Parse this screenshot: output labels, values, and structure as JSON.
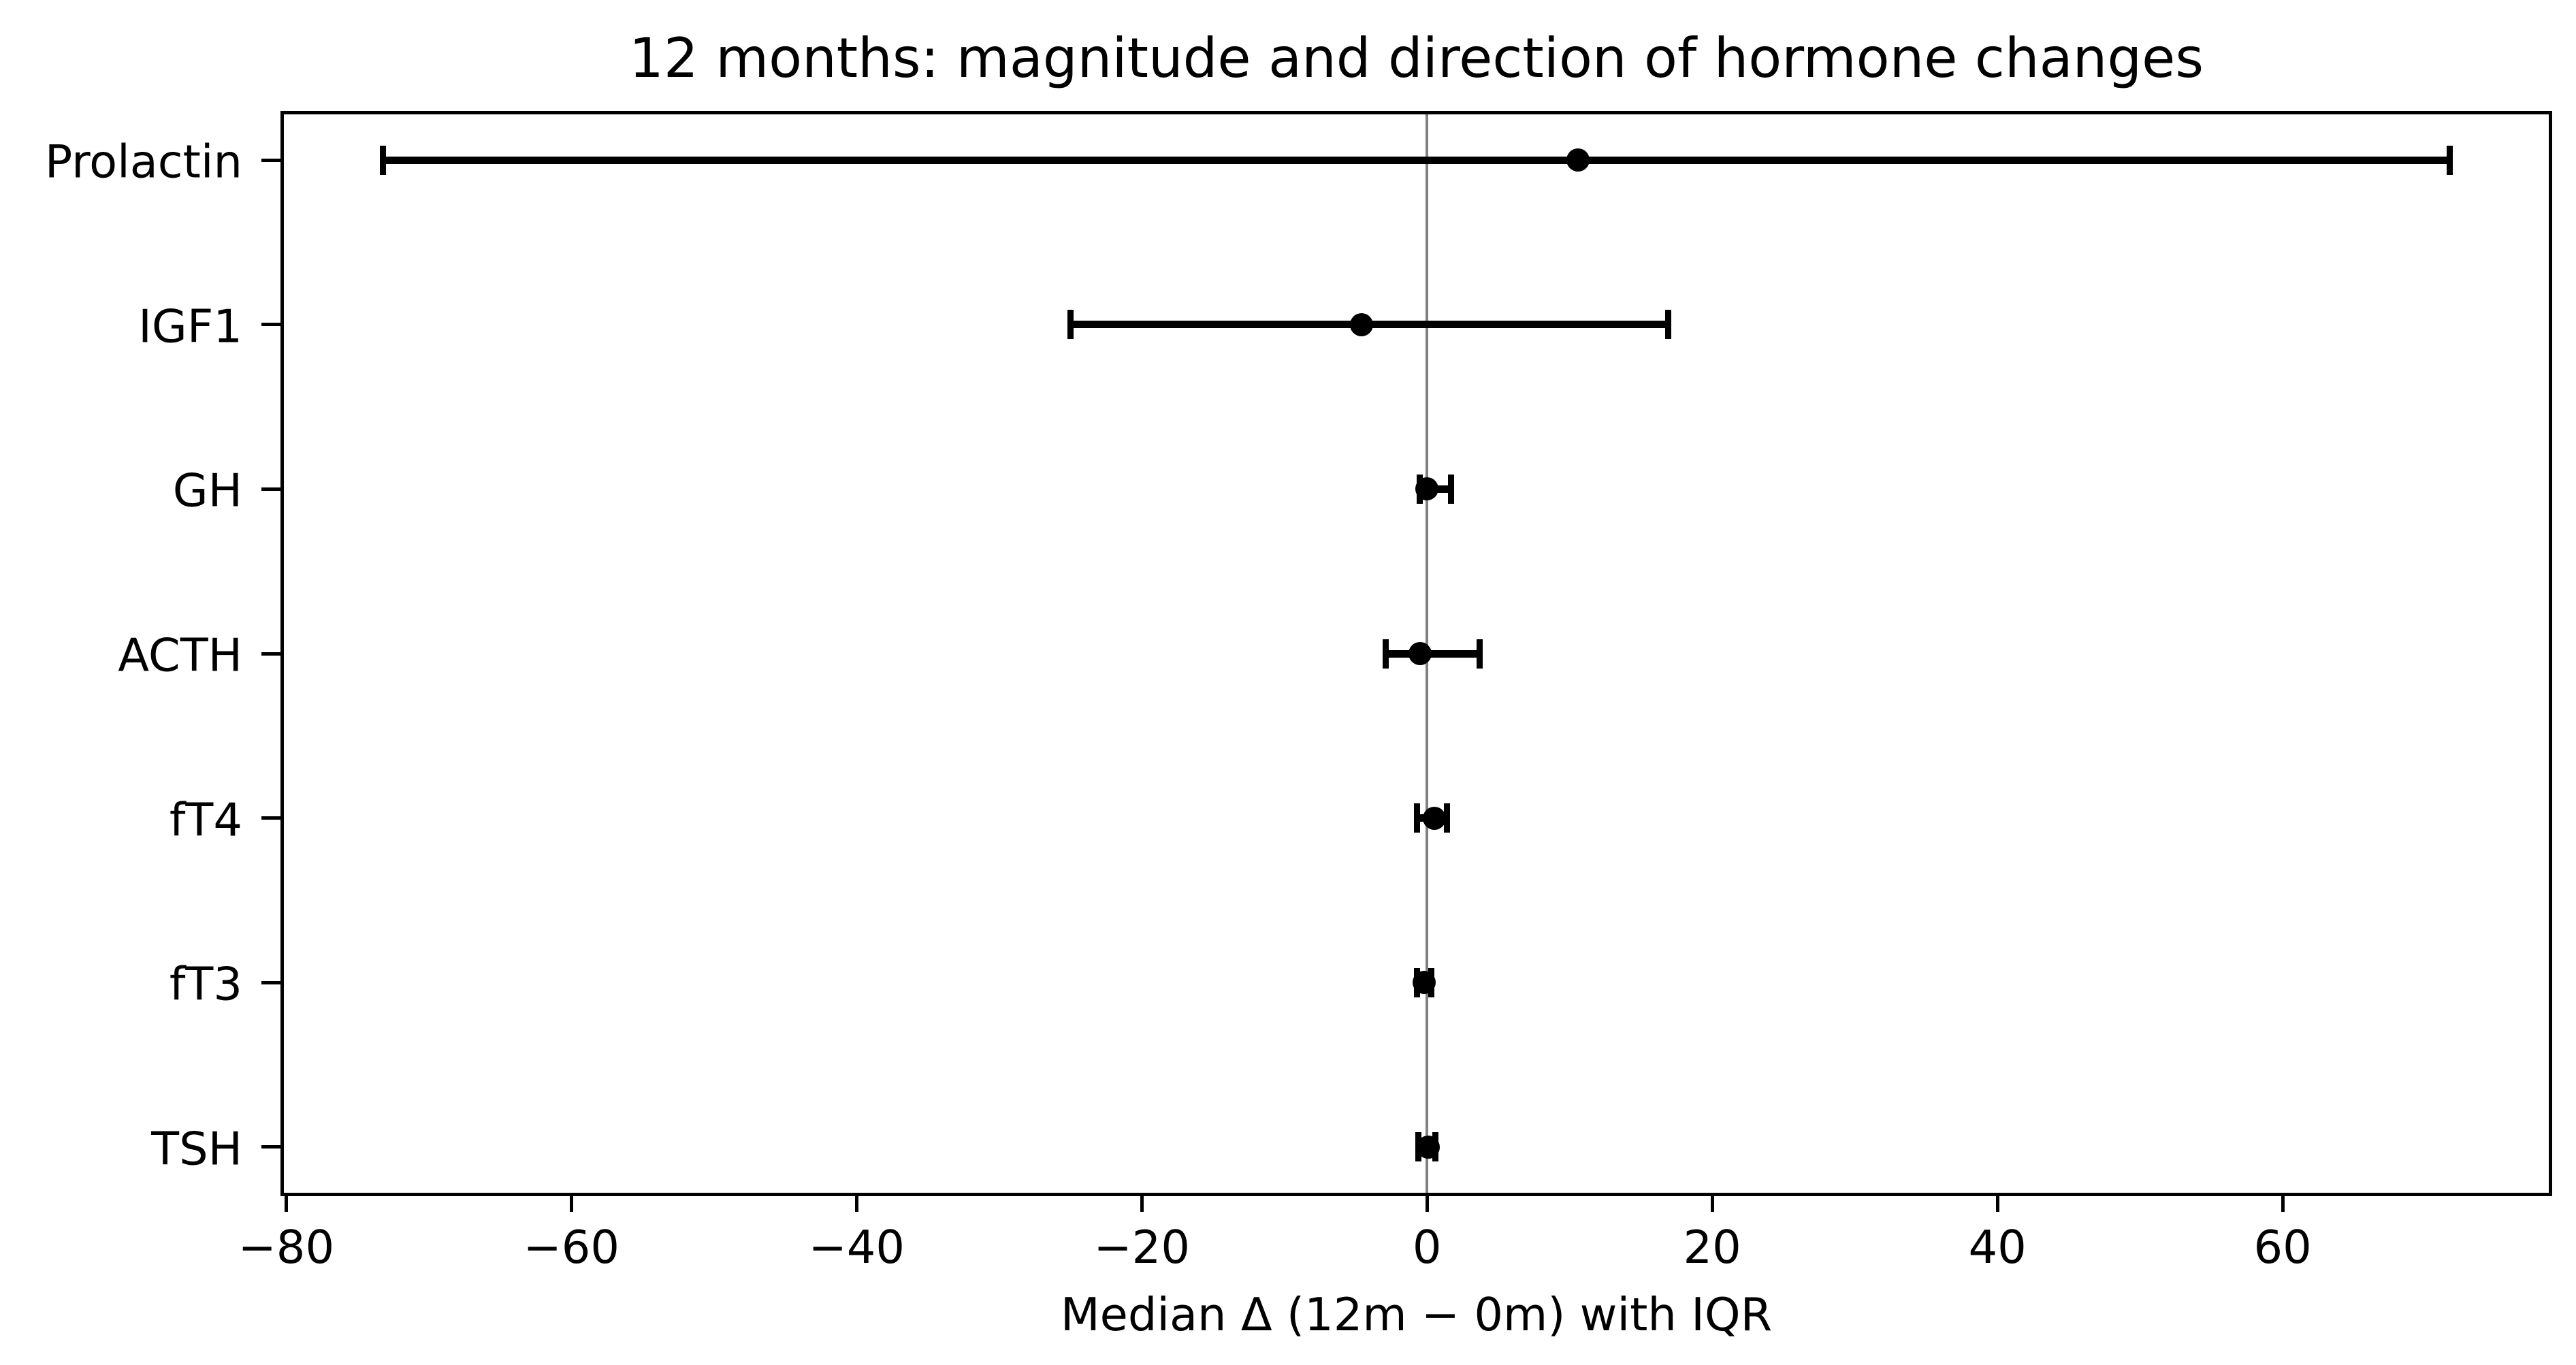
{
  "chart_data": {
    "type": "scatter",
    "subtype": "horizontal-error-bar-dot-plot",
    "title": "12 months: magnitude and direction of hormone changes",
    "xlabel": "Median Δ (12m − 0m) with IQR",
    "ylabel": "",
    "categories": [
      "Prolactin",
      "IGF1",
      "GH",
      "ACTH",
      "fT4",
      "fT3",
      "TSH"
    ],
    "series": [
      {
        "name": "Median Δ (12m − 0m)",
        "medians": [
          10.6,
          -4.6,
          0.0,
          -0.5,
          0.5,
          -0.2,
          0.1
        ],
        "iqr_low": [
          -73.2,
          -25.0,
          -0.5,
          -2.9,
          -0.7,
          -0.7,
          -0.6
        ],
        "iqr_high": [
          71.7,
          16.9,
          1.7,
          3.7,
          1.4,
          0.3,
          0.6
        ]
      }
    ],
    "xlim": [
      -80.4,
      78.9
    ],
    "xticks": [
      -80,
      -60,
      -40,
      -20,
      0,
      20,
      40,
      60
    ],
    "xtick_labels": [
      "−80",
      "−60",
      "−40",
      "−20",
      "0",
      "20",
      "40",
      "60"
    ],
    "reference_line_x": 0,
    "grid": false,
    "legend_position": "none",
    "colors": {
      "marker": "#000000",
      "error_bar": "#000000",
      "reference_line": "#808080",
      "axis": "#000000",
      "text": "#000000",
      "background": "#ffffff"
    }
  }
}
